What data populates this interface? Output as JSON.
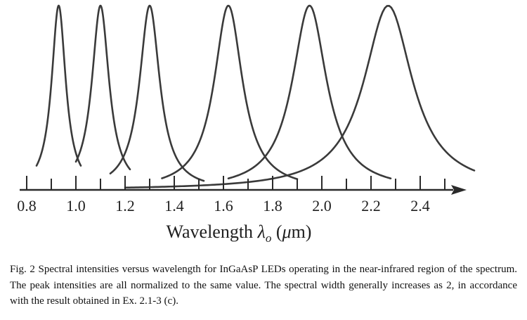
{
  "chart_data": {
    "type": "line",
    "x_range": [
      0.8,
      2.4
    ],
    "y_range": [
      0,
      1
    ],
    "grid": false,
    "legend": "none",
    "colors": {
      "curve": "#3a3a3a",
      "axis": "#2a2a2a"
    },
    "x_ticks": [
      "0.8",
      "1.0",
      "1.2",
      "1.4",
      "1.6",
      "1.8",
      "2.0",
      "2.2",
      "2.4"
    ],
    "xlabel_main": "Wavelength ",
    "xlabel_symbol": "λ",
    "xlabel_sub": "o",
    "xlabel_unit_open": " (",
    "xlabel_unit_mu": "μ",
    "xlabel_unit_rest": "m)",
    "series": [
      {
        "peak": 0.93,
        "fwhm": 0.07,
        "x_start": 0.84,
        "x_end": 1.02,
        "peak_value": 1
      },
      {
        "peak": 1.1,
        "fwhm": 0.085,
        "x_start": 1.0,
        "x_end": 1.22,
        "peak_value": 1
      },
      {
        "peak": 1.3,
        "fwhm": 0.1,
        "x_start": 1.14,
        "x_end": 1.52,
        "peak_value": 1
      },
      {
        "peak": 1.62,
        "fwhm": 0.14,
        "x_start": 1.35,
        "x_end": 1.9,
        "peak_value": 1
      },
      {
        "peak": 1.95,
        "fwhm": 0.17,
        "x_start": 1.62,
        "x_end": 2.28,
        "peak_value": 1
      },
      {
        "peak": 2.27,
        "fwhm": 0.24,
        "x_start": 1.2,
        "x_end": 2.62,
        "peak_value": 1
      }
    ]
  },
  "caption": {
    "text": "Fig. 2 Spectral intensities versus wavelength for InGaAsP LEDs operating in the near-infrared region of the spectrum. The peak intensities are all normalized to the same value. The spectral width generally increases as 2, in accordance with the result obtained in Ex. 2.1-3 (c)."
  }
}
